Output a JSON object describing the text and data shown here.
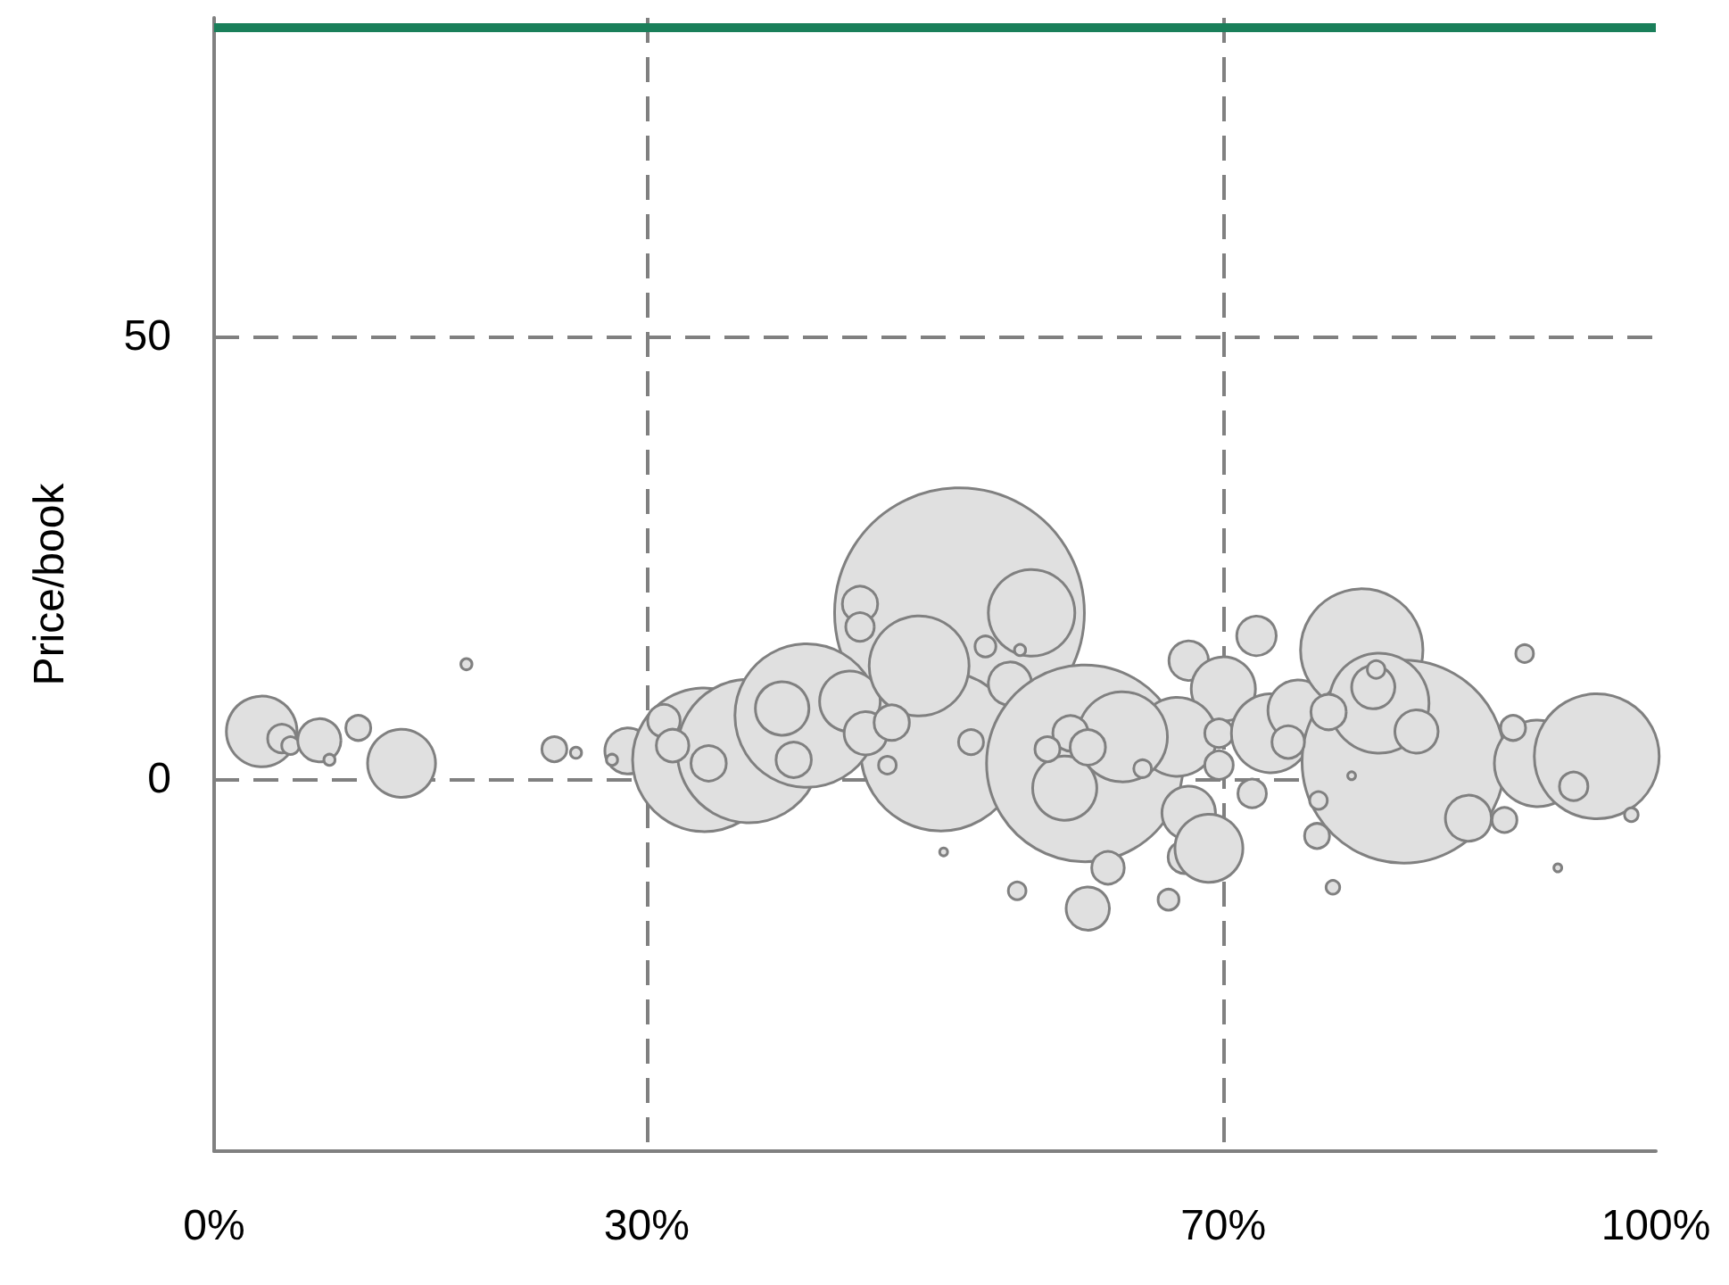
{
  "chart_data": {
    "type": "bubble",
    "ylabel": "Price/book",
    "xlim": [
      0,
      100
    ],
    "xticks": [
      {
        "value": 0,
        "label": "0%"
      },
      {
        "value": 30,
        "label": "30%"
      },
      {
        "value": 70,
        "label": "70%"
      },
      {
        "value": 100,
        "label": "100%"
      }
    ],
    "ylim": [
      -42,
      86
    ],
    "yticks": [
      0,
      50
    ],
    "grid": true,
    "ref_lines": [
      {
        "axis": "y",
        "value": 85,
        "color": "#1a7f5a"
      }
    ],
    "series": [
      {
        "color": "#e0e0e0",
        "x": [
          51.7,
          50.4,
          3.3,
          4.7,
          5.3,
          7.3,
          8.0,
          10.0,
          13.0,
          17.5,
          23.6,
          25.1,
          28.7,
          27.6,
          34.0,
          37.1,
          31.2,
          31.8,
          34.3,
          41.1,
          39.4,
          44.1,
          44.8,
          44.8,
          48.9,
          56.7,
          45.2,
          47.0,
          40.2,
          46.7,
          55.2,
          53.5,
          55.9,
          60.4,
          59.0,
          62.0,
          60.6,
          55.7,
          66.2,
          67.3,
          67.6,
          69.0,
          67.6,
          72.3,
          70.0,
          66.8,
          63.0,
          59.4,
          64.4,
          69.7,
          69.7,
          73.3,
          75.2,
          79.6,
          82.5,
          80.8,
          80.4,
          80.6,
          77.3,
          83.4,
          91.8,
          95.9,
          90.1,
          90.9,
          87.0,
          89.5,
          94.3,
          98.3,
          93.2,
          77.6,
          76.5,
          76.6,
          78.9,
          50.6,
          72.0,
          74.5,
          60.6,
          57.8,
          52.5
        ],
        "values": [
          18.8,
          3.2,
          5.4,
          4.6,
          3.8,
          4.4,
          2.2,
          5.8,
          1.8,
          13.0,
          3.4,
          3.0,
          3.2,
          2.2,
          2.2,
          3.2,
          6.6,
          3.8,
          1.8,
          7.2,
          8.0,
          8.8,
          19.8,
          17.2,
          12.8,
          18.8,
          5.2,
          6.4,
          2.2,
          1.6,
          10.8,
          15.0,
          14.6,
          1.8,
          -1.0,
          -10.0,
          -14.6,
          -12.6,
          -13.6,
          -8.8,
          -3.8,
          -7.8,
          13.4,
          16.2,
          10.2,
          4.8,
          4.8,
          5.2,
          1.2,
          5.2,
          1.6,
          5.2,
          7.8,
          14.6,
          2.0,
          8.6,
          10.4,
          12.4,
          7.6,
          5.4,
          1.8,
          2.6,
          5.8,
          14.2,
          -4.4,
          -4.6,
          -0.8,
          -4.0,
          -10.0,
          -12.2,
          -6.4,
          -2.4,
          0.4,
          -8.2,
          -1.6,
          4.2,
          3.6,
          3.4,
          4.2
        ],
        "sizes": [
          1,
          0.41,
          0.08,
          0.013,
          0.005,
          0.03,
          0.002,
          0.01,
          0.074,
          0.002,
          0.01,
          0.002,
          0.034,
          0.002,
          0.33,
          0.33,
          0.017,
          0.017,
          0.02,
          0.33,
          0.046,
          0.059,
          0.02,
          0.013,
          0.16,
          0.12,
          0.03,
          0.02,
          0.02,
          0.005,
          0.03,
          0.007,
          0.002,
          0.62,
          0.066,
          0.017,
          0.03,
          0.005,
          0.007,
          0.017,
          0.046,
          0.074,
          0.025,
          0.025,
          0.066,
          0.1,
          0.13,
          0.02,
          0.005,
          0.013,
          0.013,
          0.1,
          0.059,
          0.24,
          0.66,
          0.16,
          0.03,
          0.005,
          0.02,
          0.03,
          0.12,
          0.25,
          0.01,
          0.005,
          0.034,
          0.01,
          0.013,
          0.003,
          0.001,
          0.003,
          0.01,
          0.005,
          0.001,
          0.001,
          0.013,
          0.017,
          0.02,
          0.01,
          0.01
        ]
      }
    ]
  }
}
